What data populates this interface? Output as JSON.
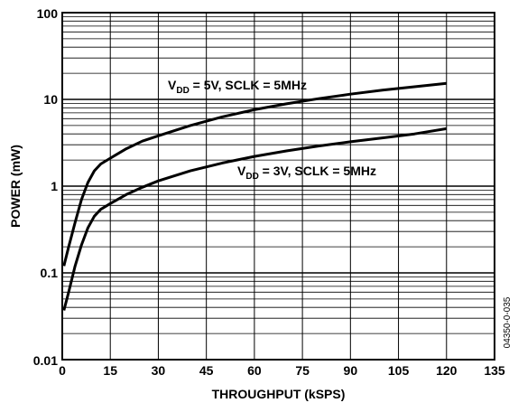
{
  "chart_data": {
    "type": "line",
    "xlabel": "THROUGHPUT (kSPS)",
    "ylabel": "POWER (mW)",
    "xlim": [
      0,
      135
    ],
    "ylim": [
      0.01,
      100
    ],
    "yscale": "log",
    "grid": true,
    "x_ticks": [
      "0",
      "15",
      "30",
      "45",
      "60",
      "75",
      "90",
      "105",
      "120",
      "135"
    ],
    "y_ticks": [
      "0.01",
      "0.1",
      "1",
      "10",
      "100"
    ],
    "figure_id": "04350-0-035",
    "series": [
      {
        "name_main": "V",
        "name_sub": "DD",
        "name_rest": " = 5V, SCLK = 5MHz",
        "x": [
          0.5,
          2,
          4,
          6,
          8,
          10,
          12,
          15,
          20,
          25,
          30,
          40,
          50,
          60,
          70,
          80,
          90,
          100,
          110,
          120
        ],
        "y": [
          0.12,
          0.2,
          0.38,
          0.7,
          1.1,
          1.5,
          1.8,
          2.1,
          2.7,
          3.3,
          3.8,
          5.0,
          6.3,
          7.6,
          8.9,
          10.2,
          11.5,
          12.8,
          14.0,
          15.3
        ]
      },
      {
        "name_main": "V",
        "name_sub": "DD",
        "name_rest": " = 3V, SCLK = 5MHz",
        "x": [
          0.5,
          2,
          4,
          6,
          8,
          10,
          12,
          15,
          20,
          25,
          30,
          40,
          50,
          60,
          70,
          80,
          90,
          100,
          110,
          120
        ],
        "y": [
          0.037,
          0.06,
          0.12,
          0.21,
          0.33,
          0.45,
          0.54,
          0.63,
          0.8,
          0.97,
          1.15,
          1.5,
          1.85,
          2.2,
          2.55,
          2.9,
          3.25,
          3.6,
          4.0,
          4.6
        ]
      }
    ]
  }
}
